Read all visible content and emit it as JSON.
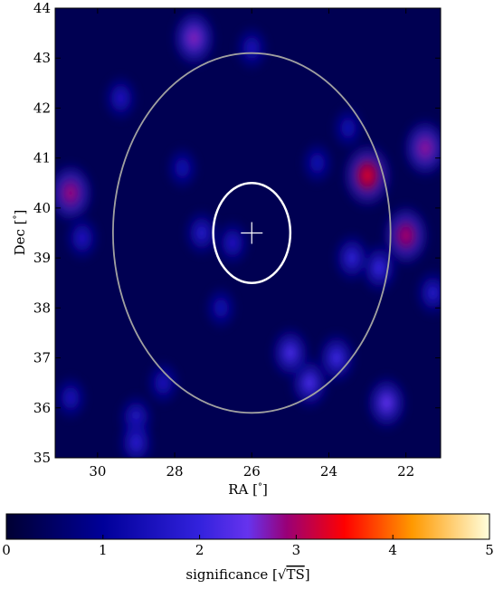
{
  "chart_data": {
    "type": "heatmap",
    "xlabel_prefix": "RA [",
    "xlabel_unit": "°",
    "xlabel_suffix": "]",
    "ylabel_prefix": "Dec [",
    "ylabel_unit": "°",
    "ylabel_suffix": "]",
    "xlim": [
      31.1,
      21.1
    ],
    "ylim": [
      35,
      44
    ],
    "x_ticks": [
      30,
      28,
      26,
      24,
      22
    ],
    "y_ticks": [
      35,
      36,
      37,
      38,
      39,
      40,
      41,
      42,
      43,
      44
    ],
    "x_tick_labels": [
      "30",
      "28",
      "26",
      "24",
      "22"
    ],
    "y_tick_labels": [
      "35",
      "36",
      "37",
      "38",
      "39",
      "40",
      "41",
      "42",
      "43",
      "44"
    ],
    "map_background_value": 0.3,
    "hotspots": [
      {
        "ra": 23.0,
        "dec": 40.65,
        "significance": 3.3
      },
      {
        "ra": 22.0,
        "dec": 39.45,
        "significance": 3.0
      },
      {
        "ra": 21.5,
        "dec": 41.2,
        "significance": 2.8
      },
      {
        "ra": 30.7,
        "dec": 40.3,
        "significance": 2.9
      },
      {
        "ra": 27.5,
        "dec": 43.4,
        "significance": 2.7
      },
      {
        "ra": 22.5,
        "dec": 36.1,
        "significance": 2.4
      },
      {
        "ra": 24.5,
        "dec": 36.5,
        "significance": 2.2
      },
      {
        "ra": 25.0,
        "dec": 37.1,
        "significance": 2.2
      },
      {
        "ra": 23.8,
        "dec": 37.0,
        "significance": 2.1
      },
      {
        "ra": 29.0,
        "dec": 35.8,
        "significance": 1.7
      },
      {
        "ra": 29.0,
        "dec": 35.3,
        "significance": 1.8
      },
      {
        "ra": 26.5,
        "dec": 39.3,
        "significance": 1.6
      },
      {
        "ra": 27.3,
        "dec": 39.5,
        "significance": 1.7
      },
      {
        "ra": 29.4,
        "dec": 42.2,
        "significance": 1.6
      },
      {
        "ra": 30.4,
        "dec": 39.4,
        "significance": 1.6
      },
      {
        "ra": 22.7,
        "dec": 38.8,
        "significance": 2.0
      },
      {
        "ra": 23.4,
        "dec": 39.0,
        "significance": 1.9
      },
      {
        "ra": 21.3,
        "dec": 38.3,
        "significance": 1.7
      },
      {
        "ra": 28.3,
        "dec": 36.5,
        "significance": 1.5
      },
      {
        "ra": 30.7,
        "dec": 36.2,
        "significance": 1.5
      },
      {
        "ra": 26.8,
        "dec": 38.0,
        "significance": 1.4
      },
      {
        "ra": 24.3,
        "dec": 40.9,
        "significance": 1.4
      },
      {
        "ra": 26.0,
        "dec": 43.2,
        "significance": 1.5
      },
      {
        "ra": 23.5,
        "dec": 41.6,
        "significance": 1.4
      },
      {
        "ra": 27.8,
        "dec": 40.8,
        "significance": 1.4
      }
    ],
    "circles": [
      {
        "ra": 26.0,
        "dec": 39.5,
        "radius_deg": 3.6,
        "color": "#a0a0a0"
      },
      {
        "ra": 26.0,
        "dec": 39.5,
        "radius_deg": 1.0,
        "color": "#ffffff"
      }
    ],
    "marker": {
      "ra": 26.0,
      "dec": 39.5,
      "symbol": "+",
      "color": "#ffffff"
    },
    "colorbar": {
      "min": 0,
      "max": 5,
      "ticks": [
        0,
        1,
        2,
        3,
        4,
        5
      ],
      "tick_labels": [
        "0",
        "1",
        "2",
        "3",
        "4",
        "5"
      ],
      "label_prefix": "significance [",
      "label_sqrt": "√",
      "label_ts": "TS",
      "label_suffix": "]",
      "colormap_stops": [
        {
          "v": 0.0,
          "color": "#000033"
        },
        {
          "v": 1.0,
          "color": "#000099"
        },
        {
          "v": 2.0,
          "color": "#3322dd"
        },
        {
          "v": 2.5,
          "color": "#6633ee"
        },
        {
          "v": 2.9,
          "color": "#990077"
        },
        {
          "v": 3.5,
          "color": "#ff0000"
        },
        {
          "v": 4.2,
          "color": "#ff9900"
        },
        {
          "v": 5.0,
          "color": "#ffffdd"
        }
      ]
    }
  }
}
